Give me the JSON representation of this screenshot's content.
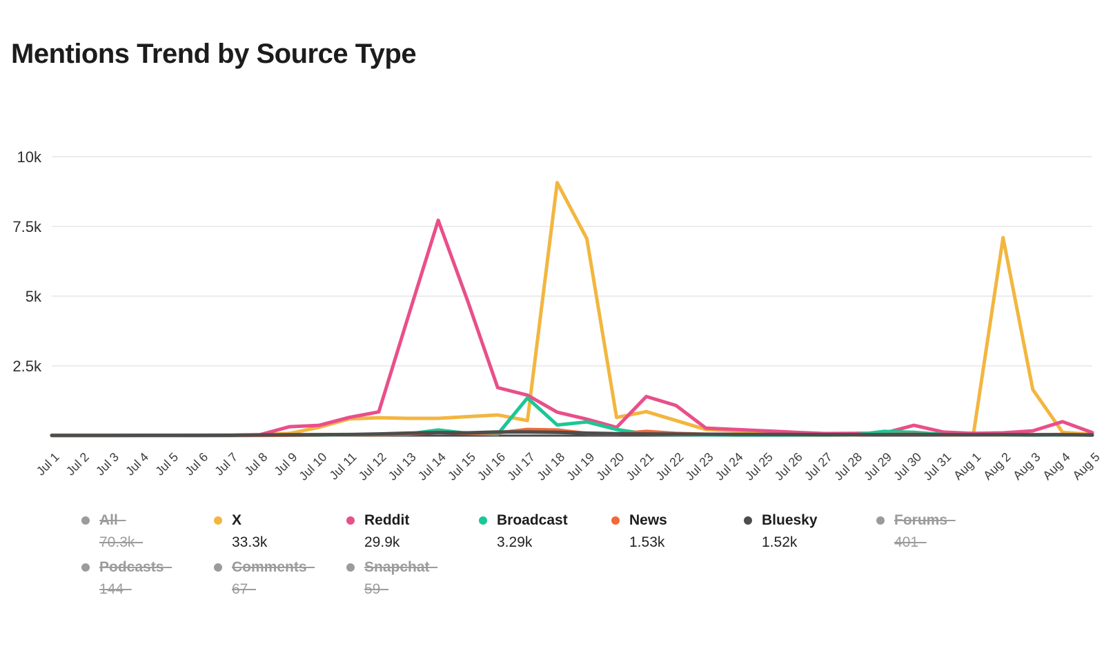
{
  "title": "Mentions Trend by Source Type",
  "colors": {
    "x": "#F2B63F",
    "reddit": "#E94F8A",
    "broadcast": "#1BC795",
    "news": "#F06A38",
    "bluesky": "#4D4D4D",
    "disabled": "#9B9B9B",
    "grid": "#ECECEC",
    "axis": "#4B4B4B",
    "tick_text": "#3C3C3C"
  },
  "chart_data": {
    "type": "line",
    "title": "Mentions Trend by Source Type",
    "xlabel": "",
    "ylabel": "",
    "ylim": [
      0,
      10000
    ],
    "grid": true,
    "legend_position": "bottom",
    "yticks": [
      {
        "value": 2500,
        "label": "2.5k"
      },
      {
        "value": 5000,
        "label": "5k"
      },
      {
        "value": 7500,
        "label": "7.5k"
      },
      {
        "value": 10000,
        "label": "10k"
      }
    ],
    "x": [
      "Jul 1",
      "Jul 2",
      "Jul 3",
      "Jul 4",
      "Jul 5",
      "Jul 6",
      "Jul 7",
      "Jul 8",
      "Jul 9",
      "Jul 10",
      "Jul 11",
      "Jul 12",
      "Jul 13",
      "Jul 14",
      "Jul 15",
      "Jul 16",
      "Jul 17",
      "Jul 18",
      "Jul 19",
      "Jul 20",
      "Jul 21",
      "Jul 22",
      "Jul 23",
      "Jul 24",
      "Jul 25",
      "Jul 26",
      "Jul 27",
      "Jul 28",
      "Jul 29",
      "Jul 30",
      "Jul 31",
      "Aug 1",
      "Aug 2",
      "Aug 3",
      "Aug 4",
      "Aug 5"
    ],
    "series": [
      {
        "name": "X",
        "color": "#F2B63F",
        "values": [
          10,
          10,
          10,
          10,
          12,
          15,
          20,
          30,
          80,
          300,
          600,
          640,
          620,
          620,
          680,
          740,
          540,
          9070,
          7060,
          650,
          860,
          540,
          220,
          170,
          120,
          80,
          50,
          40,
          40,
          60,
          40,
          40,
          7100,
          1650,
          120,
          40
        ]
      },
      {
        "name": "Reddit",
        "color": "#E94F8A",
        "values": [
          5,
          5,
          5,
          5,
          5,
          8,
          10,
          30,
          320,
          370,
          650,
          850,
          4300,
          7720,
          4800,
          1720,
          1450,
          840,
          590,
          295,
          1400,
          1080,
          270,
          220,
          170,
          120,
          75,
          80,
          90,
          370,
          125,
          80,
          100,
          170,
          500,
          110
        ]
      },
      {
        "name": "Broadcast",
        "color": "#1BC795",
        "values": [
          5,
          5,
          5,
          5,
          5,
          5,
          8,
          10,
          15,
          20,
          30,
          40,
          60,
          200,
          80,
          50,
          1350,
          380,
          490,
          220,
          60,
          40,
          25,
          20,
          20,
          20,
          20,
          25,
          150,
          120,
          40,
          30,
          25,
          20,
          30,
          15
        ]
      },
      {
        "name": "News",
        "color": "#F06A38",
        "values": [
          5,
          5,
          5,
          5,
          5,
          5,
          8,
          10,
          15,
          30,
          35,
          40,
          60,
          120,
          80,
          100,
          220,
          200,
          80,
          60,
          150,
          80,
          50,
          40,
          40,
          35,
          30,
          30,
          40,
          50,
          30,
          30,
          30,
          30,
          40,
          20
        ]
      },
      {
        "name": "Bluesky",
        "color": "#4D4D4D",
        "values": [
          8,
          8,
          8,
          10,
          10,
          10,
          12,
          25,
          30,
          35,
          40,
          60,
          90,
          110,
          100,
          130,
          130,
          120,
          90,
          70,
          60,
          55,
          50,
          45,
          40,
          40,
          35,
          35,
          35,
          40,
          35,
          30,
          35,
          30,
          30,
          25
        ]
      }
    ]
  },
  "legend": {
    "items": [
      {
        "label": "All",
        "value": "70.3k",
        "color": "#9B9B9B",
        "enabled": false
      },
      {
        "label": "X",
        "value": "33.3k",
        "color": "#F2B63F",
        "enabled": true
      },
      {
        "label": "Reddit",
        "value": "29.9k",
        "color": "#E94F8A",
        "enabled": true
      },
      {
        "label": "Broadcast",
        "value": "3.29k",
        "color": "#1BC795",
        "enabled": true
      },
      {
        "label": "News",
        "value": "1.53k",
        "color": "#F06A38",
        "enabled": true
      },
      {
        "label": "Bluesky",
        "value": "1.52k",
        "color": "#4D4D4D",
        "enabled": true
      },
      {
        "label": "Forums",
        "value": "401",
        "color": "#9B9B9B",
        "enabled": false
      },
      {
        "label": "Podcasts",
        "value": "144",
        "color": "#9B9B9B",
        "enabled": false
      },
      {
        "label": "Comments",
        "value": "67",
        "color": "#9B9B9B",
        "enabled": false
      },
      {
        "label": "Snapchat",
        "value": "59",
        "color": "#9B9B9B",
        "enabled": false
      }
    ]
  }
}
